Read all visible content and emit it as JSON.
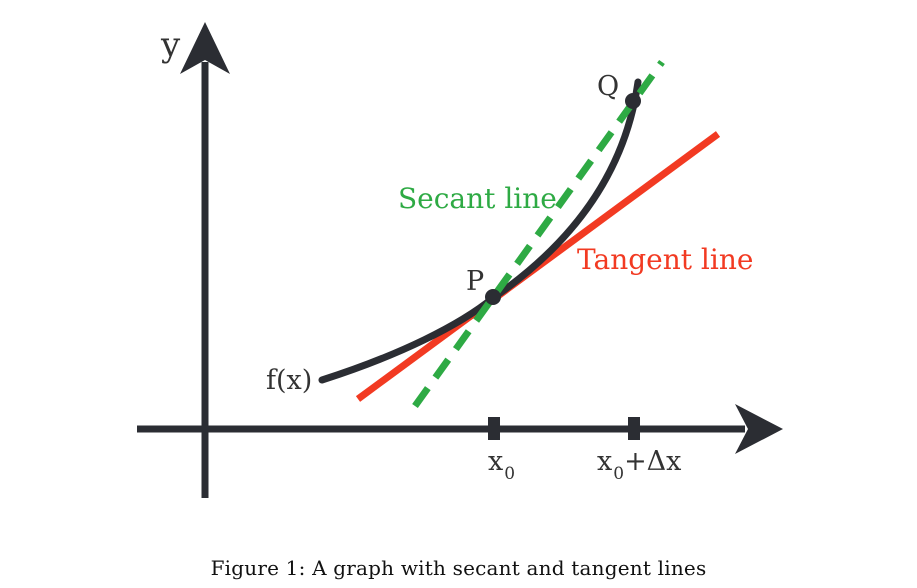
{
  "labels": {
    "y_axis": "y",
    "function": "f(x)",
    "point_p": "P",
    "point_q": "Q",
    "secant": "Secant line",
    "tangent": "Tangent line",
    "x0_base": "x",
    "x0_sub": "0",
    "x1_base": "x",
    "x1_sub": "0",
    "x1_suffix": "+Δx"
  },
  "caption": "Figure 1: A graph with secant and tangent lines",
  "colors": {
    "axis": "#2b2d33",
    "curve": "#2b2d33",
    "secant": "#2eaa44",
    "tangent": "#f23a22",
    "text": "#333333"
  }
}
